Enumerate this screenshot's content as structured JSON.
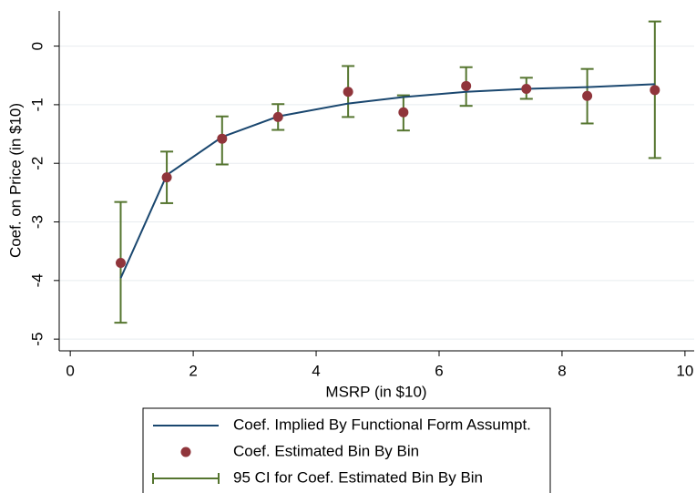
{
  "chart_data": {
    "type": "line",
    "x_label": "MSRP (in $10)",
    "y_label": "Coef. on Price (in $10)",
    "x": [
      0.82,
      1.57,
      2.47,
      3.38,
      4.52,
      5.42,
      6.44,
      7.42,
      8.41,
      9.51
    ],
    "series": [
      {
        "name": "Coef. Implied By Functional Form Assumpt.",
        "color": "#1a476f",
        "style": "line",
        "values": [
          -3.96,
          -2.2,
          -1.55,
          -1.2,
          -0.98,
          -0.87,
          -0.78,
          -0.73,
          -0.7,
          -0.65
        ]
      },
      {
        "name": "Coef. Estimated Bin By Bin",
        "color": "#90353b",
        "style": "points",
        "values": [
          -3.7,
          -2.24,
          -1.58,
          -1.21,
          -0.78,
          -1.13,
          -0.68,
          -0.73,
          -0.85,
          -0.75
        ]
      },
      {
        "name": "95 CI for Coef. Estimated Bin By Bin",
        "color": "#55752f",
        "style": "errorbar",
        "lower": [
          -4.72,
          -2.68,
          -2.02,
          -1.43,
          -1.21,
          -1.44,
          -1.02,
          -0.9,
          -1.32,
          -1.91
        ],
        "upper": [
          -2.66,
          -1.8,
          -1.2,
          -0.99,
          -0.34,
          -0.84,
          -0.36,
          -0.54,
          -0.39,
          0.42
        ]
      }
    ],
    "xlim": [
      -0.18,
      10.15
    ],
    "ylim": [
      -5.2,
      0.6
    ],
    "xticks": [
      0,
      2,
      4,
      6,
      8,
      10
    ],
    "yticks": [
      0,
      -1,
      -2,
      -3,
      -4,
      -5
    ],
    "grid": true,
    "legend": "bottom"
  }
}
